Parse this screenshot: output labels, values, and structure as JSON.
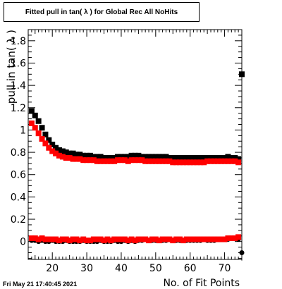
{
  "timestamp": "Fri May 21 17:40:45 2021",
  "chart_data": {
    "type": "scatter",
    "title": "Fitted pull in tan( λ ) for Global Rec All NoHits",
    "xlabel": "No. of Fit Points",
    "ylabel": "pull in tan( λ )",
    "xlim": [
      13,
      75
    ],
    "ylim": [
      -0.16,
      1.9
    ],
    "x_ticks": [
      20,
      30,
      40,
      50,
      60,
      70
    ],
    "y_ticks": [
      0,
      0.2,
      0.4,
      0.6,
      0.8,
      1,
      1.2,
      1.4,
      1.6,
      1.8
    ],
    "y_tick_labels": [
      "0",
      "0.2",
      "0.4",
      "0.6",
      "0.8",
      "1",
      "1.2",
      "1.4",
      "1.6",
      "1.8"
    ],
    "grid": false,
    "colors": {
      "black": "#000000",
      "red": "#ff0000"
    },
    "series": [
      {
        "color": "#000000",
        "marker": "square",
        "x": [
          14,
          15,
          16,
          17,
          18,
          19,
          20,
          21,
          22,
          23,
          24,
          25,
          26,
          27,
          28,
          29,
          30,
          31,
          32,
          33,
          34,
          35,
          36,
          37,
          38,
          39,
          40,
          41,
          42,
          43,
          44,
          45,
          46,
          47,
          48,
          49,
          50,
          51,
          52,
          53,
          54,
          55,
          56,
          57,
          58,
          59,
          60,
          61,
          62,
          63,
          64,
          65,
          66,
          67,
          68,
          69,
          70,
          71,
          72,
          73,
          74
        ],
        "values": [
          1.17,
          1.13,
          1.08,
          1.02,
          0.96,
          0.91,
          0.87,
          0.84,
          0.82,
          0.81,
          0.8,
          0.79,
          0.79,
          0.78,
          0.78,
          0.77,
          0.77,
          0.77,
          0.76,
          0.76,
          0.76,
          0.75,
          0.75,
          0.75,
          0.75,
          0.76,
          0.76,
          0.76,
          0.76,
          0.77,
          0.77,
          0.77,
          0.76,
          0.76,
          0.76,
          0.76,
          0.76,
          0.76,
          0.76,
          0.76,
          0.75,
          0.75,
          0.75,
          0.75,
          0.75,
          0.75,
          0.75,
          0.75,
          0.75,
          0.75,
          0.75,
          0.75,
          0.75,
          0.75,
          0.75,
          0.75,
          0.75,
          0.76,
          0.75,
          0.75,
          0.74
        ],
        "errors": []
      },
      {
        "color": "#ff0000",
        "marker": "square",
        "x": [
          14,
          15,
          16,
          17,
          18,
          19,
          20,
          21,
          22,
          23,
          24,
          25,
          26,
          27,
          28,
          29,
          30,
          31,
          32,
          33,
          34,
          35,
          36,
          37,
          38,
          39,
          40,
          41,
          42,
          43,
          44,
          45,
          46,
          47,
          48,
          49,
          50,
          51,
          52,
          53,
          54,
          55,
          56,
          57,
          58,
          59,
          60,
          61,
          62,
          63,
          64,
          65,
          66,
          67,
          68,
          69,
          70,
          71,
          72,
          73,
          74
        ],
        "values": [
          1.06,
          1.02,
          0.97,
          0.92,
          0.88,
          0.84,
          0.81,
          0.79,
          0.77,
          0.76,
          0.75,
          0.75,
          0.74,
          0.74,
          0.74,
          0.73,
          0.73,
          0.73,
          0.73,
          0.72,
          0.72,
          0.72,
          0.72,
          0.72,
          0.72,
          0.73,
          0.73,
          0.73,
          0.72,
          0.73,
          0.73,
          0.73,
          0.73,
          0.72,
          0.72,
          0.72,
          0.72,
          0.72,
          0.72,
          0.72,
          0.72,
          0.71,
          0.71,
          0.71,
          0.71,
          0.71,
          0.71,
          0.71,
          0.71,
          0.71,
          0.71,
          0.72,
          0.72,
          0.72,
          0.72,
          0.72,
          0.72,
          0.72,
          0.72,
          0.72,
          0.71
        ],
        "errors": []
      },
      {
        "color": "#000000",
        "marker": "square",
        "x": [
          75
        ],
        "values": [
          1.5
        ],
        "errors": [
          0.32
        ]
      },
      {
        "color": "#000000",
        "marker": "circle",
        "x": [
          14,
          15,
          16,
          17,
          18,
          19,
          20,
          21,
          22,
          23,
          24,
          25,
          26,
          27,
          28,
          29,
          30,
          31,
          32,
          33,
          34,
          35,
          36,
          37,
          38,
          39,
          40,
          41,
          42,
          43,
          44,
          45,
          46,
          47,
          48,
          49,
          50,
          51,
          52,
          53,
          54,
          55,
          56,
          57,
          58,
          59,
          60,
          61,
          62,
          63,
          64,
          65,
          66,
          67,
          68,
          69,
          70,
          71,
          72,
          73,
          74
        ],
        "values": [
          0.01,
          0.01,
          0.0,
          0.01,
          0.0,
          0.0,
          0.01,
          0.0,
          0.0,
          0.0,
          0.01,
          0.0,
          0.0,
          0.0,
          0.0,
          0.01,
          0.0,
          0.0,
          0.0,
          0.0,
          0.01,
          0.0,
          0.0,
          0.0,
          0.01,
          0.0,
          0.0,
          0.01,
          0.0,
          0.01,
          0.0,
          0.01,
          0.01,
          0.02,
          0.01,
          0.01,
          0.01,
          0.01,
          0.01,
          0.01,
          0.02,
          0.01,
          0.01,
          0.01,
          0.01,
          0.01,
          0.01,
          0.01,
          0.01,
          0.01,
          0.02,
          0.01,
          0.01,
          0.01,
          0.02,
          0.02,
          0.02,
          0.02,
          0.03,
          0.03,
          0.02
        ],
        "errors": []
      },
      {
        "color": "#ff0000",
        "marker": "square",
        "x": [
          14,
          15,
          16,
          17,
          18,
          19,
          20,
          21,
          22,
          23,
          24,
          25,
          26,
          27,
          28,
          29,
          30,
          31,
          32,
          33,
          34,
          35,
          36,
          37,
          38,
          39,
          40,
          41,
          42,
          43,
          44,
          45,
          46,
          47,
          48,
          49,
          50,
          51,
          52,
          53,
          54,
          55,
          56,
          57,
          58,
          59,
          60,
          61,
          62,
          63,
          64,
          65,
          66,
          67,
          68,
          69,
          70,
          71,
          72,
          73,
          74
        ],
        "values": [
          0.03,
          0.03,
          0.02,
          0.03,
          0.02,
          0.02,
          0.02,
          0.02,
          0.01,
          0.02,
          0.02,
          0.01,
          0.02,
          0.02,
          0.01,
          0.02,
          0.01,
          0.01,
          0.02,
          0.02,
          0.02,
          0.01,
          0.02,
          0.01,
          0.02,
          0.02,
          0.02,
          0.02,
          0.01,
          0.02,
          0.01,
          0.02,
          0.02,
          0.02,
          0.01,
          0.02,
          0.02,
          0.01,
          0.02,
          0.02,
          0.02,
          0.01,
          0.02,
          0.02,
          0.01,
          0.02,
          0.02,
          0.02,
          0.02,
          0.02,
          0.02,
          0.02,
          0.02,
          0.02,
          0.02,
          0.02,
          0.02,
          0.03,
          0.03,
          0.03,
          0.04
        ],
        "errors": []
      },
      {
        "color": "#000000",
        "marker": "circle",
        "x": [
          75
        ],
        "values": [
          -0.1
        ],
        "errors": [
          0.07
        ]
      }
    ]
  }
}
